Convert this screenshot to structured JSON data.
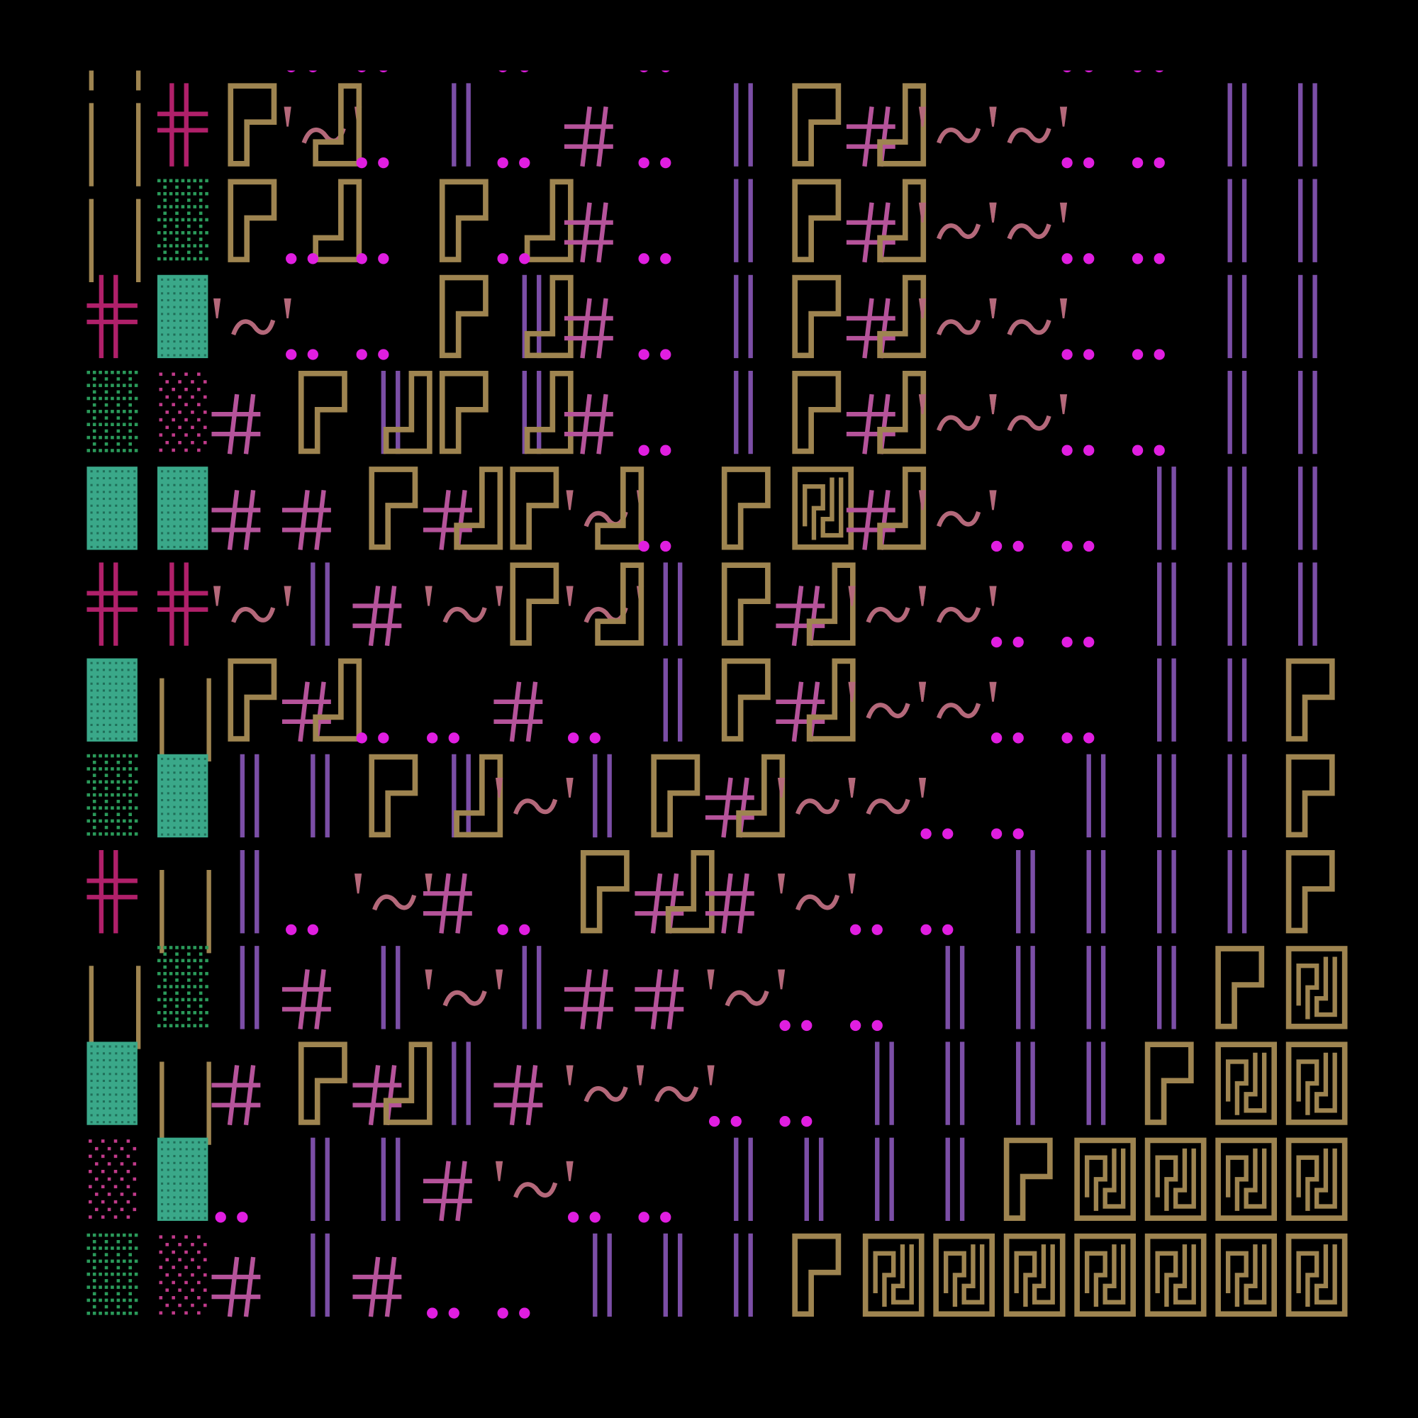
{
  "map": {
    "rows": [
      [
        "U",
        null,
        null,
        "D",
        "D",
        null,
        "D",
        null,
        "D",
        null,
        null,
        null,
        null,
        null,
        "D",
        "D",
        null,
        null
      ],
      [
        "U",
        "X",
        "P",
        "TJ",
        "D",
        "V",
        "D",
        "H",
        "D",
        "V",
        "P",
        "HJ",
        "T",
        "T",
        "D",
        "D",
        "V",
        "V"
      ],
      [
        "U",
        "G",
        "P",
        "JD",
        "D",
        "P",
        "JD",
        "H",
        "D",
        "V",
        "P",
        "HJ",
        "T",
        "T",
        "D",
        "D",
        "V",
        "V"
      ],
      [
        "X",
        "S",
        "T",
        "D",
        "D",
        "P",
        "VJ",
        "H",
        "D",
        "V",
        "P",
        "HJ",
        "T",
        "T",
        "D",
        "D",
        "V",
        "V"
      ],
      [
        "G",
        "K",
        "H",
        "P",
        "VJ",
        "P",
        "VJ",
        "H",
        "D",
        "V",
        "P",
        "HJ",
        "T",
        "T",
        "D",
        "D",
        "V",
        "V"
      ],
      [
        "S",
        "S",
        "H",
        "H",
        "P",
        "HJ",
        "P",
        "TJ",
        "D",
        "P",
        "B",
        "HJ",
        "T",
        "D",
        "D",
        "V",
        "V",
        "V"
      ],
      [
        "X",
        "X",
        "T",
        "V",
        "H",
        "T",
        "P",
        "TJ",
        "V",
        "P",
        "HJ",
        "T",
        "T",
        "D",
        "D",
        "V",
        "V",
        "V"
      ],
      [
        "S",
        "U",
        "P",
        "HJ",
        "D",
        "D",
        "H",
        "D",
        "V",
        "P",
        "HJ",
        "T",
        "T",
        "D",
        "D",
        "V",
        "V",
        "P"
      ],
      [
        "G",
        "S",
        "V",
        "V",
        "P",
        "VJ",
        "T",
        "V",
        "P",
        "HJ",
        "T",
        "T",
        "D",
        "D",
        "V",
        "V",
        "V",
        "P"
      ],
      [
        "X",
        "U",
        "V",
        "D",
        "T",
        "H",
        "D",
        "P",
        "HJ",
        "H",
        "T",
        "D",
        "D",
        "V",
        "V",
        "V",
        "V",
        "P"
      ],
      [
        "U",
        "G",
        "V",
        "H",
        "V",
        "T",
        "V",
        "H",
        "H",
        "T",
        "D",
        "D",
        "V",
        "V",
        "V",
        "V",
        "P",
        "B"
      ],
      [
        "S",
        "U",
        "H",
        "P",
        "HJ",
        "V",
        "H",
        "T",
        "T",
        "D",
        "D",
        "V",
        "V",
        "V",
        "V",
        "P",
        "B",
        "B"
      ],
      [
        "K",
        "S",
        "D",
        "V",
        "V",
        "H",
        "T",
        "D",
        "D",
        "V",
        "V",
        "V",
        "V",
        "P",
        "B",
        "B",
        "B",
        "B"
      ],
      [
        "G",
        "K",
        "H",
        "V",
        "H",
        "D",
        "D",
        "V",
        "V",
        "V",
        "P",
        "B",
        "B",
        "B",
        "B",
        "B",
        "B",
        "B"
      ]
    ]
  }
}
